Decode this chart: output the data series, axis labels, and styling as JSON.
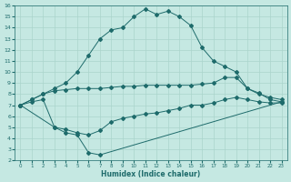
{
  "xlabel": "Humidex (Indice chaleur)",
  "xlim": [
    -0.5,
    23.5
  ],
  "ylim": [
    2,
    16
  ],
  "xticks": [
    0,
    1,
    2,
    3,
    4,
    5,
    6,
    7,
    8,
    9,
    10,
    11,
    12,
    13,
    14,
    15,
    16,
    17,
    18,
    19,
    20,
    21,
    22,
    23
  ],
  "yticks": [
    2,
    3,
    4,
    5,
    6,
    7,
    8,
    9,
    10,
    11,
    12,
    13,
    14,
    15,
    16
  ],
  "background_color": "#c5e8e2",
  "grid_color": "#aad4cc",
  "line_color": "#1e6b6b",
  "line1_x": [
    0,
    1,
    2,
    3,
    4,
    5,
    6,
    7,
    8,
    9,
    10,
    11,
    12,
    13,
    14,
    15,
    16,
    17,
    18,
    19,
    20,
    21,
    22,
    23
  ],
  "line1_y": [
    7.0,
    7.5,
    8.0,
    8.5,
    9.0,
    10.0,
    11.5,
    13.0,
    13.8,
    14.0,
    15.0,
    15.7,
    15.2,
    15.5,
    15.0,
    14.2,
    12.2,
    11.0,
    10.5,
    10.0,
    8.5,
    8.0,
    7.7,
    7.5
  ],
  "line2_x": [
    0,
    1,
    2,
    3,
    4,
    5,
    6,
    7,
    8,
    9,
    10,
    11,
    12,
    13,
    14,
    15,
    16,
    17,
    18,
    19,
    20,
    21,
    22,
    23
  ],
  "line2_y": [
    7.0,
    7.5,
    8.0,
    8.3,
    8.4,
    8.5,
    8.5,
    8.5,
    8.6,
    8.7,
    8.7,
    8.8,
    8.8,
    8.8,
    8.8,
    8.8,
    8.9,
    9.0,
    9.5,
    9.5,
    8.5,
    8.1,
    7.5,
    7.3
  ],
  "line3_x": [
    0,
    1,
    2,
    3,
    4,
    5,
    6,
    7,
    8,
    9,
    10,
    11,
    12,
    13,
    14,
    15,
    16,
    17,
    18,
    19,
    20,
    21,
    22,
    23
  ],
  "line3_y": [
    7.0,
    7.3,
    7.5,
    5.0,
    4.8,
    4.5,
    4.3,
    4.7,
    5.5,
    5.8,
    6.0,
    6.2,
    6.3,
    6.5,
    6.7,
    7.0,
    7.0,
    7.2,
    7.5,
    7.7,
    7.5,
    7.3,
    7.2,
    7.2
  ],
  "line4_x": [
    0,
    3,
    4,
    5,
    6,
    7,
    23
  ],
  "line4_y": [
    7.0,
    5.0,
    4.5,
    4.3,
    2.7,
    2.5,
    7.3
  ],
  "markersize": 2.0
}
